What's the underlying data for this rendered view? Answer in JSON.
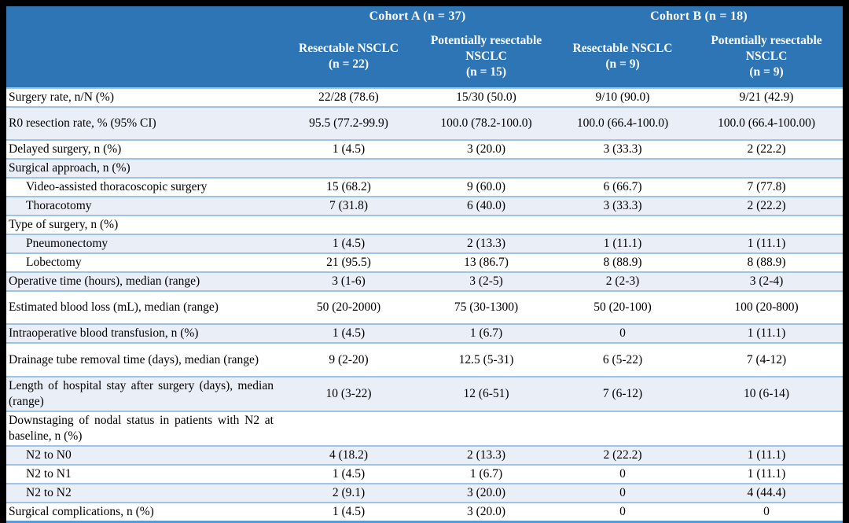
{
  "table": {
    "groups": [
      {
        "label": "Cohort A (n = 37)"
      },
      {
        "label": "Cohort B (n = 18)"
      }
    ],
    "columns": [
      {
        "name": "Resectable NSCLC",
        "n": "(n = 22)"
      },
      {
        "name": "Potentially resectable NSCLC",
        "n": "(n = 15)"
      },
      {
        "name": "Resectable NSCLC",
        "n": "(n = 9)"
      },
      {
        "name": "Potentially resectable NSCLC",
        "n": "(n = 9)"
      }
    ],
    "rows": [
      {
        "label": "Surgery rate, n/N (%)",
        "values": [
          "22/28 (78.6)",
          "15/30 (50.0)",
          "9/10 (90.0)",
          "9/21 (42.9)"
        ],
        "shaded": false,
        "indent": false,
        "size": "normal"
      },
      {
        "label": "R0 resection rate, % (95% CI)",
        "values": [
          "95.5 (77.2-99.9)",
          "100.0 (78.2-100.0)",
          "100.0 (66.4-100.0)",
          "100.0 (66.4-100.00)"
        ],
        "shaded": true,
        "indent": false,
        "size": "tall"
      },
      {
        "label": "Delayed surgery, n (%)",
        "values": [
          "1 (4.5)",
          "3 (20.0)",
          "3 (33.3)",
          "2 (22.2)"
        ],
        "shaded": false,
        "indent": false,
        "size": "normal"
      },
      {
        "label": "Surgical approach, n (%)",
        "values": [
          "",
          "",
          "",
          ""
        ],
        "shaded": true,
        "indent": false,
        "size": "normal"
      },
      {
        "label": "Video-assisted thoracoscopic surgery",
        "values": [
          "15 (68.2)",
          "9 (60.0)",
          "6 (66.7)",
          "7 (77.8)"
        ],
        "shaded": false,
        "indent": true,
        "size": "normal"
      },
      {
        "label": "Thoracotomy",
        "values": [
          "7 (31.8)",
          "6 (40.0)",
          "3 (33.3)",
          "2 (22.2)"
        ],
        "shaded": true,
        "indent": true,
        "size": "normal"
      },
      {
        "label": "Type of surgery, n (%)",
        "values": [
          "",
          "",
          "",
          ""
        ],
        "shaded": false,
        "indent": false,
        "size": "normal"
      },
      {
        "label": "Pneumonectomy",
        "values": [
          "1 (4.5)",
          "2 (13.3)",
          "1 (11.1)",
          "1 (11.1)"
        ],
        "shaded": true,
        "indent": true,
        "size": "normal"
      },
      {
        "label": "Lobectomy",
        "values": [
          "21 (95.5)",
          "13 (86.7)",
          "8 (88.9)",
          "8 (88.9)"
        ],
        "shaded": false,
        "indent": true,
        "size": "normal"
      },
      {
        "label": "Operative time (hours), median (range)",
        "values": [
          "3 (1-6)",
          "3 (2-5)",
          "2 (2-3)",
          "3 (2-4)"
        ],
        "shaded": true,
        "indent": false,
        "size": "normal"
      },
      {
        "label": "Estimated blood loss (mL), median (range)",
        "values": [
          "50 (20-2000)",
          "75 (30-1300)",
          "50 (20-100)",
          "100 (20-800)"
        ],
        "shaded": false,
        "indent": false,
        "size": "tall"
      },
      {
        "label": "Intraoperative blood transfusion, n (%)",
        "values": [
          "1 (4.5)",
          "1 (6.7)",
          "0",
          "1 (11.1)"
        ],
        "shaded": true,
        "indent": false,
        "size": "normal"
      },
      {
        "label": "Drainage tube removal time (days), median (range)",
        "values": [
          "9 (2-20)",
          "12.5 (5-31)",
          "6 (5-22)",
          "7 (4-12)"
        ],
        "shaded": false,
        "indent": false,
        "size": "tall2"
      },
      {
        "label": "Length of hospital stay after surgery (days), median (range)",
        "values": [
          "10 (3-22)",
          "12 (6-51)",
          "7 (6-12)",
          "10 (6-14)"
        ],
        "shaded": true,
        "indent": false,
        "size": "tall2"
      },
      {
        "label": "Downstaging of nodal status in patients with N2 at baseline, n (%)",
        "values": [
          "",
          "",
          "",
          ""
        ],
        "shaded": false,
        "indent": false,
        "size": "tall2"
      },
      {
        "label": "N2 to N0",
        "values": [
          "4 (18.2)",
          "2 (13.3)",
          "2 (22.2)",
          "1 (11.1)"
        ],
        "shaded": true,
        "indent": true,
        "size": "normal"
      },
      {
        "label": "N2 to N1",
        "values": [
          "1 (4.5)",
          "1 (6.7)",
          "0",
          "1 (11.1)"
        ],
        "shaded": false,
        "indent": true,
        "size": "normal"
      },
      {
        "label": "N2 to N2",
        "values": [
          "2 (9.1)",
          "3 (20.0)",
          "0",
          "4 (44.4)"
        ],
        "shaded": true,
        "indent": true,
        "size": "normal"
      },
      {
        "label": "Surgical complications, n (%)",
        "values": [
          "1 (4.5)",
          "3 (20.0)",
          "0",
          "0"
        ],
        "shaded": false,
        "indent": false,
        "size": "normal"
      }
    ]
  },
  "colors": {
    "header_bg": "#2E75B6",
    "header_text": "#FFFFFF",
    "shaded_row_bg": "#EAEFF7",
    "row_divider": "#9DC3E6",
    "table_bottom_border": "#5B9BD5",
    "frame": "#000000",
    "body_text": "#000000"
  }
}
